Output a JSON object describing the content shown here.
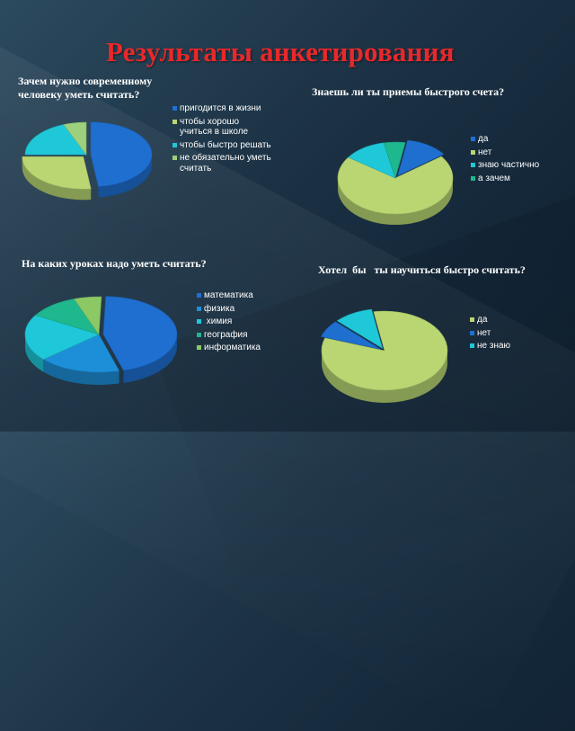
{
  "title": "Результаты анкетирования",
  "chart_data": [
    {
      "type": "pie",
      "title": "Зачем нужно современному человеку уметь считать?",
      "categories": [
        "пригодится в жизни",
        "чтобы хорошо учиться в школе",
        "чтобы быстро решать",
        "не обязательно уметь считать"
      ],
      "values": [
        48,
        27,
        19,
        6
      ],
      "colors": [
        "#1f6fd0",
        "#b9d673",
        "#1fc8d8",
        "#9cd07c"
      ],
      "legend": "right"
    },
    {
      "type": "pie",
      "title": "Знаешь ли ты приемы быстрого счета?",
      "categories": [
        "да",
        "нет",
        "знаю частично",
        "а зачем"
      ],
      "values": [
        12,
        70,
        12,
        6
      ],
      "colors": [
        "#1f6fd0",
        "#b9d673",
        "#1fc8d8",
        "#1fb78e"
      ],
      "legend": "right"
    },
    {
      "type": "pie",
      "title": "На каких уроках надо уметь считать?",
      "categories": [
        "математика",
        "физика",
        " химия",
        "география",
        "информатика"
      ],
      "values": [
        45,
        18,
        20,
        11,
        6
      ],
      "colors": [
        "#1f6fd0",
        "#1d8fd8",
        "#1fc8d8",
        "#1fb78e",
        "#8cc864"
      ],
      "legend": "right"
    },
    {
      "type": "pie",
      "title": "Хотел  бы   ты научиться быстро считать?",
      "categories": [
        "да",
        "нет",
        "не знаю"
      ],
      "values": [
        83,
        7,
        10
      ],
      "colors": [
        "#b9d673",
        "#1f6fd0",
        "#1fc8d8"
      ],
      "legend": "right"
    }
  ]
}
